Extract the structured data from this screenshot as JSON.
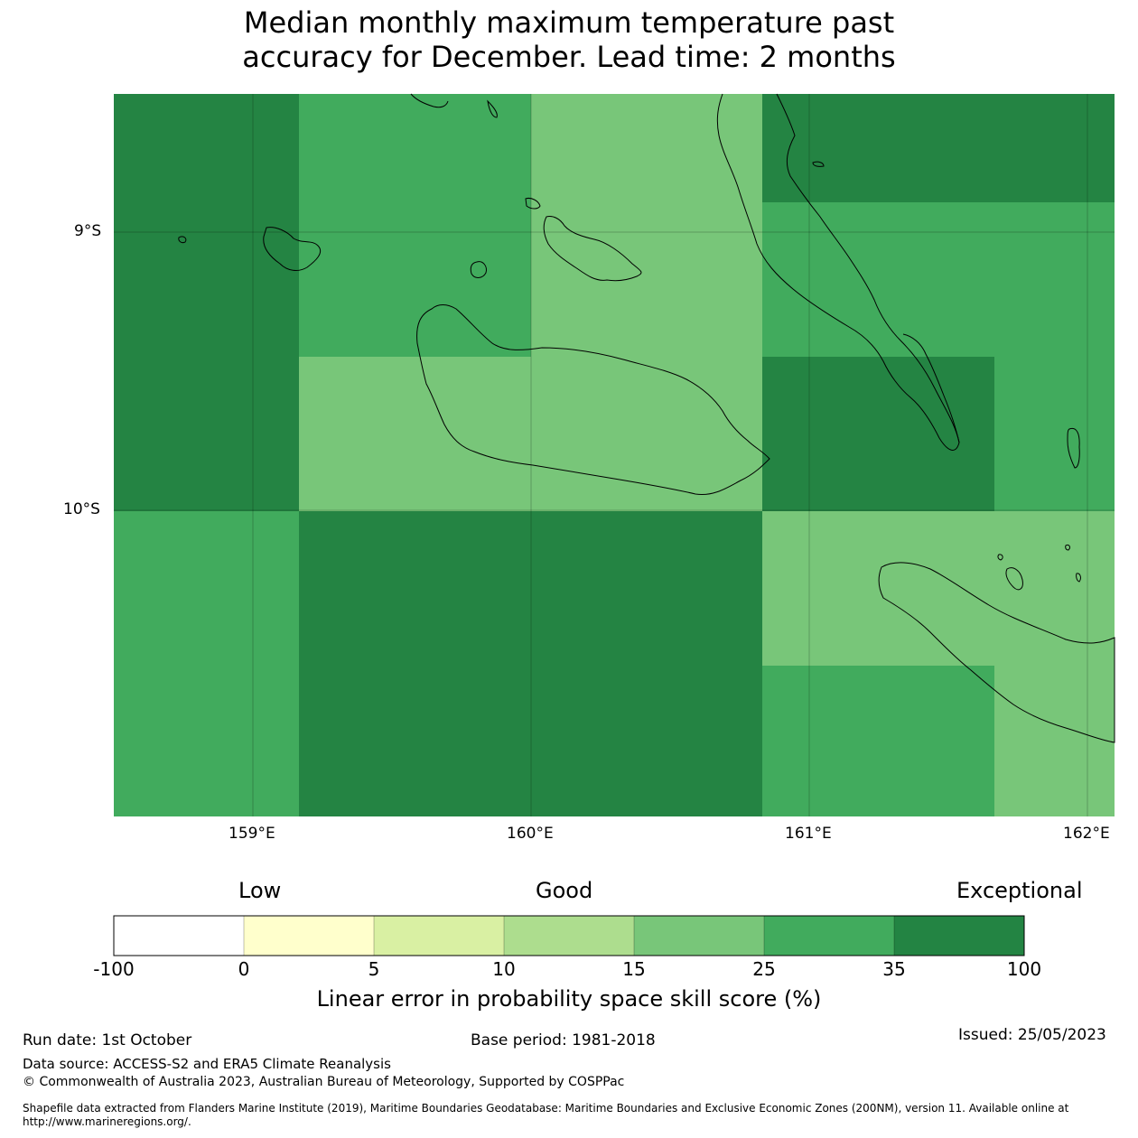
{
  "title_line1": "Median monthly maximum temperature past",
  "title_line2": "accuracy for December. Lead time: 2 months",
  "axes": {
    "lat_labels": [
      "9°S",
      "10°S"
    ],
    "lon_labels": [
      "159°E",
      "160°E",
      "161°E",
      "162°E"
    ]
  },
  "map_colors": {
    "dark": "#248443",
    "mid": "#41ab5d",
    "light": "#78c679",
    "coast": "#000000"
  },
  "colorbar": {
    "qualitative_labels": [
      "Low",
      "Good",
      "Exceptional"
    ],
    "ticks": [
      "-100",
      "0",
      "5",
      "10",
      "15",
      "25",
      "35",
      "100"
    ],
    "colors": [
      "#ffffff",
      "#ffffcc",
      "#d9f0a3",
      "#addd8e",
      "#78c679",
      "#41ab5d",
      "#238443"
    ],
    "title": "Linear error in probability space skill score (%)"
  },
  "footer": {
    "run_date": "Run date: 1st October",
    "base_period": "Base period: 1981-2018",
    "issued": "Issued: 25/05/2023",
    "data_source": "Data source: ACCESS-S2 and ERA5 Climate Reanalysis",
    "copyright": "© Commonwealth of Australia 2023, Australian Bureau of Meteorology, Supported by COSPPac",
    "shapefile_line1": "Shapefile data extracted from Flanders Marine Institute (2019), Maritime Boundaries Geodatabase: Maritime Boundaries and Exclusive Economic Zones (200NM), version 11. Available online at",
    "shapefile_line2": "http://www.marineregions.org/."
  }
}
